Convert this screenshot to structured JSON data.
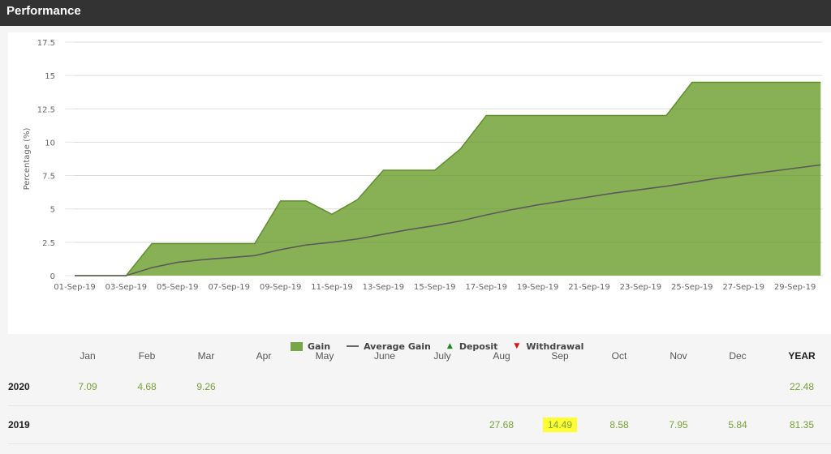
{
  "header": {
    "title": "Performance"
  },
  "chart_data": {
    "type": "area",
    "title": "Performance",
    "xlabel": "",
    "ylabel": "Percentage (%)",
    "ylim": [
      0,
      17.5
    ],
    "yticks": [
      "0",
      "2.5",
      "5",
      "7.5",
      "10",
      "12.5",
      "15",
      "17.5"
    ],
    "xticks": [
      "01-Sep-19",
      "03-Sep-19",
      "05-Sep-19",
      "07-Sep-19",
      "09-Sep-19",
      "11-Sep-19",
      "13-Sep-19",
      "15-Sep-19",
      "17-Sep-19",
      "19-Sep-19",
      "21-Sep-19",
      "23-Sep-19",
      "25-Sep-19",
      "27-Sep-19",
      "29-Sep-19"
    ],
    "grid": true,
    "legend_position": "bottom",
    "x": [
      "01-Sep-19",
      "02-Sep-19",
      "03-Sep-19",
      "04-Sep-19",
      "05-Sep-19",
      "06-Sep-19",
      "07-Sep-19",
      "08-Sep-19",
      "09-Sep-19",
      "10-Sep-19",
      "11-Sep-19",
      "12-Sep-19",
      "13-Sep-19",
      "14-Sep-19",
      "15-Sep-19",
      "16-Sep-19",
      "17-Sep-19",
      "18-Sep-19",
      "19-Sep-19",
      "20-Sep-19",
      "21-Sep-19",
      "22-Sep-19",
      "23-Sep-19",
      "24-Sep-19",
      "25-Sep-19",
      "26-Sep-19",
      "27-Sep-19",
      "28-Sep-19",
      "29-Sep-19",
      "30-Sep-19"
    ],
    "series": [
      {
        "name": "Gain",
        "type": "area",
        "color": "#77a644",
        "values": [
          0,
          0,
          0,
          2.4,
          2.4,
          2.4,
          2.4,
          2.4,
          5.6,
          5.6,
          4.6,
          5.7,
          7.9,
          7.9,
          7.9,
          9.5,
          12.0,
          12.0,
          12.0,
          12.0,
          12.0,
          12.0,
          12.0,
          12.0,
          14.49,
          14.49,
          14.49,
          14.49,
          14.49,
          14.49
        ]
      },
      {
        "name": "Average Gain",
        "type": "line",
        "color": "#666666",
        "values": [
          0,
          0,
          0,
          0.6,
          1.0,
          1.2,
          1.35,
          1.5,
          1.95,
          2.3,
          2.5,
          2.75,
          3.1,
          3.45,
          3.75,
          4.1,
          4.55,
          4.95,
          5.3,
          5.6,
          5.9,
          6.2,
          6.45,
          6.7,
          7.0,
          7.3,
          7.55,
          7.8,
          8.05,
          8.3
        ]
      }
    ]
  },
  "legend": [
    {
      "label": "Gain",
      "kind": "swatch",
      "color": "#77a644"
    },
    {
      "label": "Average Gain",
      "kind": "line",
      "color": "#666666"
    },
    {
      "label": "Deposit",
      "kind": "triangle-up",
      "color": "#1a8a1a",
      "glyph": "▲"
    },
    {
      "label": "Withdrawal",
      "kind": "triangle-down",
      "color": "#dd1111",
      "glyph": "▼"
    }
  ],
  "table": {
    "columns": [
      "Jan",
      "Feb",
      "Mar",
      "Apr",
      "May",
      "June",
      "July",
      "Aug",
      "Sep",
      "Oct",
      "Nov",
      "Dec",
      "YEAR"
    ],
    "rows": [
      {
        "year": "2020",
        "values": [
          "7.09",
          "4.68",
          "9.26",
          "",
          "",
          "",
          "",
          "",
          "",
          "",
          "",
          "",
          "22.48"
        ]
      },
      {
        "year": "2019",
        "values": [
          "",
          "",
          "",
          "",
          "",
          "",
          "",
          "27.68",
          "14.49",
          "8.58",
          "7.95",
          "5.84",
          "81.35"
        ],
        "highlight_index": 8
      }
    ]
  }
}
